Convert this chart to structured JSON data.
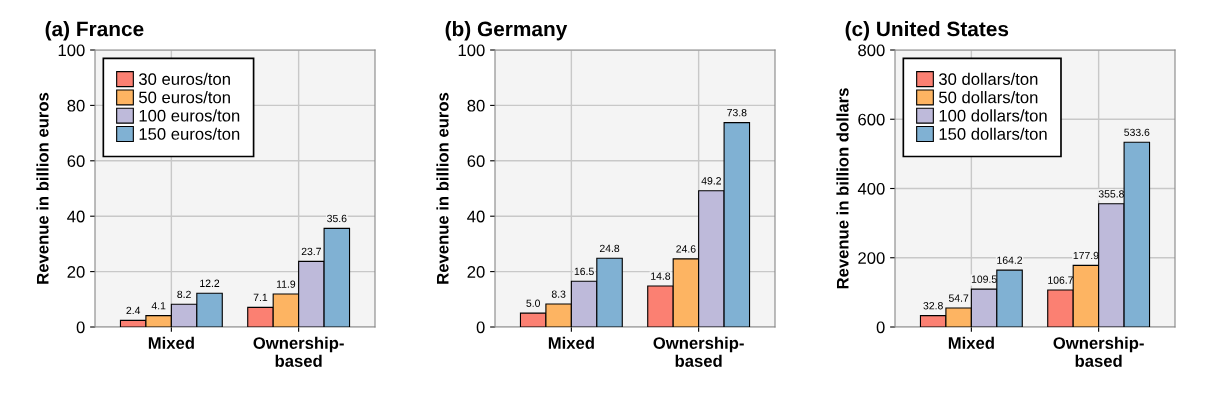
{
  "chart_data": [
    {
      "type": "bar",
      "title": "(a) France",
      "ylabel": "Revenue in billion euros",
      "categories": [
        "Mixed",
        "Ownership-\nbased"
      ],
      "ylim": [
        0,
        100
      ],
      "yticks": [
        0,
        20,
        40,
        60,
        80,
        100
      ],
      "grid": true,
      "legend": "top left",
      "series": [
        {
          "name": "30 euros/ton",
          "color": "#fb8072",
          "values": [
            2.4,
            7.1
          ],
          "value_labels": [
            "2.4",
            "7.1"
          ]
        },
        {
          "name": "50 euros/ton",
          "color": "#fdb462",
          "values": [
            4.1,
            11.9
          ],
          "value_labels": [
            "4.1",
            "11.9"
          ]
        },
        {
          "name": "100 euros/ton",
          "color": "#bebada",
          "values": [
            8.2,
            23.7
          ],
          "value_labels": [
            "8.2",
            "23.7"
          ]
        },
        {
          "name": "150 euros/ton",
          "color": "#80b1d3",
          "values": [
            12.2,
            35.6
          ],
          "value_labels": [
            "12.2",
            "35.6"
          ]
        }
      ]
    },
    {
      "type": "bar",
      "title": "(b) Germany",
      "ylabel": "Revenue in billion euros",
      "categories": [
        "Mixed",
        "Ownership-\nbased"
      ],
      "ylim": [
        0,
        100
      ],
      "yticks": [
        0,
        20,
        40,
        60,
        80,
        100
      ],
      "grid": true,
      "series": [
        {
          "color": "#fb8072",
          "values": [
            5.0,
            14.8
          ],
          "value_labels": [
            "5.0",
            "14.8"
          ]
        },
        {
          "color": "#fdb462",
          "values": [
            8.3,
            24.6
          ],
          "value_labels": [
            "8.3",
            "24.6"
          ]
        },
        {
          "color": "#bebada",
          "values": [
            16.5,
            49.2
          ],
          "value_labels": [
            "16.5",
            "49.2"
          ]
        },
        {
          "color": "#80b1d3",
          "values": [
            24.8,
            73.8
          ],
          "value_labels": [
            "24.8",
            "73.8"
          ]
        }
      ]
    },
    {
      "type": "bar",
      "title": "(c) United States",
      "ylabel": "Revenue in billion dollars",
      "categories": [
        "Mixed",
        "Ownership-\nbased"
      ],
      "ylim": [
        0,
        800
      ],
      "yticks": [
        0,
        200,
        400,
        600,
        800
      ],
      "grid": true,
      "legend": "top left",
      "series": [
        {
          "name": "30 dollars/ton",
          "color": "#fb8072",
          "values": [
            32.8,
            106.7
          ],
          "value_labels": [
            "32.8",
            "106.7"
          ]
        },
        {
          "name": "50 dollars/ton",
          "color": "#fdb462",
          "values": [
            54.7,
            177.9
          ],
          "value_labels": [
            "54.7",
            "177.9"
          ]
        },
        {
          "name": "100 dollars/ton",
          "color": "#bebada",
          "values": [
            109.5,
            355.8
          ],
          "value_labels": [
            "109.5",
            "355.8"
          ]
        },
        {
          "name": "150 dollars/ton",
          "color": "#80b1d3",
          "values": [
            164.2,
            533.6
          ],
          "value_labels": [
            "164.2",
            "533.6"
          ]
        }
      ]
    }
  ]
}
